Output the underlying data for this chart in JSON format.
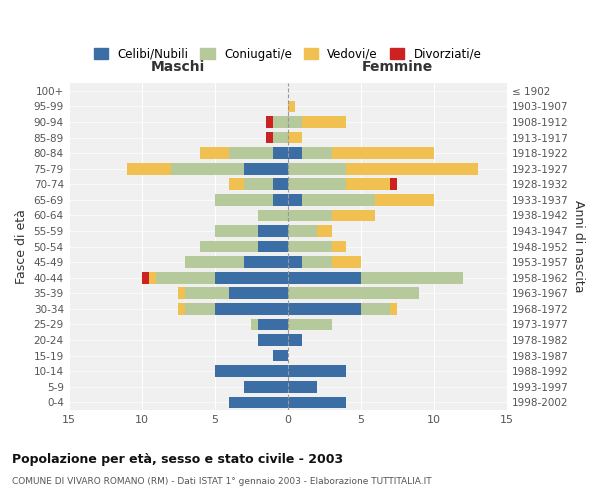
{
  "age_groups": [
    "0-4",
    "5-9",
    "10-14",
    "15-19",
    "20-24",
    "25-29",
    "30-34",
    "35-39",
    "40-44",
    "45-49",
    "50-54",
    "55-59",
    "60-64",
    "65-69",
    "70-74",
    "75-79",
    "80-84",
    "85-89",
    "90-94",
    "95-99",
    "100+"
  ],
  "birth_years": [
    "1998-2002",
    "1993-1997",
    "1988-1992",
    "1983-1987",
    "1978-1982",
    "1973-1977",
    "1968-1972",
    "1963-1967",
    "1958-1962",
    "1953-1957",
    "1948-1952",
    "1943-1947",
    "1938-1942",
    "1933-1937",
    "1928-1932",
    "1923-1927",
    "1918-1922",
    "1913-1917",
    "1908-1912",
    "1903-1907",
    "≤ 1902"
  ],
  "males": {
    "celibi": [
      4,
      3,
      5,
      1,
      2,
      2,
      5,
      4,
      5,
      3,
      2,
      2,
      0,
      1,
      1,
      3,
      1,
      0,
      0,
      0,
      0
    ],
    "coniugati": [
      0,
      0,
      0,
      0,
      0,
      0.5,
      2,
      3,
      4,
      4,
      4,
      3,
      2,
      4,
      2,
      5,
      3,
      1,
      1,
      0,
      0
    ],
    "vedovi": [
      0,
      0,
      0,
      0,
      0,
      0,
      0.5,
      0.5,
      0.5,
      0,
      0,
      0,
      0,
      0,
      1,
      3,
      2,
      0,
      0,
      0,
      0
    ],
    "divorziati": [
      0,
      0,
      0,
      0,
      0,
      0,
      0,
      0,
      0.5,
      0,
      0,
      0,
      0,
      0,
      0,
      0,
      0,
      0.5,
      0.5,
      0,
      0
    ]
  },
  "females": {
    "nubili": [
      4,
      2,
      4,
      0,
      1,
      0,
      5,
      0,
      5,
      1,
      0,
      0,
      0,
      1,
      0,
      0,
      1,
      0,
      0,
      0,
      0
    ],
    "coniugate": [
      0,
      0,
      0,
      0,
      0,
      3,
      2,
      9,
      7,
      2,
      3,
      2,
      3,
      5,
      4,
      4,
      2,
      0,
      1,
      0,
      0
    ],
    "vedove": [
      0,
      0,
      0,
      0,
      0,
      0,
      0.5,
      0,
      0,
      2,
      1,
      1,
      3,
      4,
      3,
      9,
      7,
      1,
      3,
      0.5,
      0
    ],
    "divorziate": [
      0,
      0,
      0,
      0,
      0,
      0,
      0,
      0,
      0,
      0,
      0,
      0,
      0,
      0,
      0.5,
      0,
      0,
      0,
      0,
      0,
      0
    ]
  },
  "colors": {
    "celibi": "#3a6ea5",
    "coniugati": "#b5c99a",
    "vedovi": "#f0c050",
    "divorziati": "#cc2222"
  },
  "title": "Popolazione per età, sesso e stato civile - 2003",
  "subtitle": "COMUNE DI VIVARO ROMANO (RM) - Dati ISTAT 1° gennaio 2003 - Elaborazione TUTTITALIA.IT",
  "xlabel_left": "Maschi",
  "xlabel_right": "Femmine",
  "ylabel_left": "Fasce di età",
  "ylabel_right": "Anni di nascita",
  "xlim": 15,
  "legend_labels": [
    "Celibi/Nubili",
    "Coniugati/e",
    "Vedovi/e",
    "Divorziati/e"
  ],
  "background_color": "#ffffff",
  "bg_axes": "#f0f0f0"
}
